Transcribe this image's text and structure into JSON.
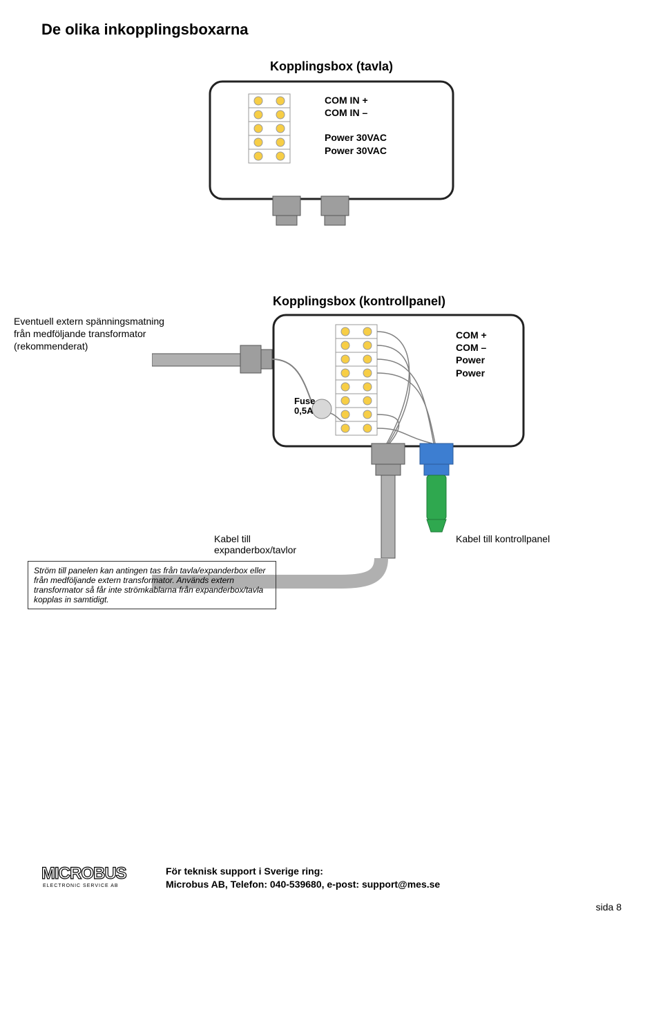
{
  "page": {
    "title": "De olika inkopplingsboxarna",
    "page_label": "sida 8"
  },
  "box_tavla": {
    "title": "Kopplingsbox (tavla)",
    "labels": [
      "COM IN +",
      "COM IN –",
      "",
      "Power 30VAC",
      "Power 30VAC"
    ]
  },
  "kontrollpanel_box": {
    "title": "Kopplingsbox (kontrollpanel)",
    "labels": [
      "COM +",
      "COM –",
      "Power",
      "Power"
    ],
    "fuse_line1": "Fuse",
    "fuse_line2": "0,5A"
  },
  "side_note": {
    "line1": "Eventuell extern spänningsmatning",
    "line2": "från medföljande transformator",
    "line3": "(rekommenderat)"
  },
  "cable_labels": {
    "expander": "Kabel till\nexpanderbox/tavlor",
    "kontrollpanel": "Kabel till kontrollpanel"
  },
  "note_box": {
    "text": "Ström till panelen kan antingen tas från tavla/expanderbox eller från medföljande extern transformator. Används extern transformator så får inte strömkablarna från expanderbox/tavla kopplas in samtidigt."
  },
  "footer": {
    "line1": "För teknisk support i Sverige ring:",
    "line2": "Microbus AB, Telefon: 040-539680, e-post: support@mes.se"
  },
  "logo": {
    "name": "MICROBUS",
    "subtitle": "ELECTRONIC SERVICE AB"
  },
  "colors": {
    "box_border": "#222222",
    "connector_fill": "#9e9e9e",
    "connector_stroke": "#555555",
    "terminal_fill": "#f7ce46",
    "terminal_stroke": "#999999",
    "wire": "#808080",
    "cable_body": "#b0b0b0",
    "green": "#2fa84f",
    "blue": "#3d7ed1",
    "fuse_fill": "#d8d8d8"
  }
}
